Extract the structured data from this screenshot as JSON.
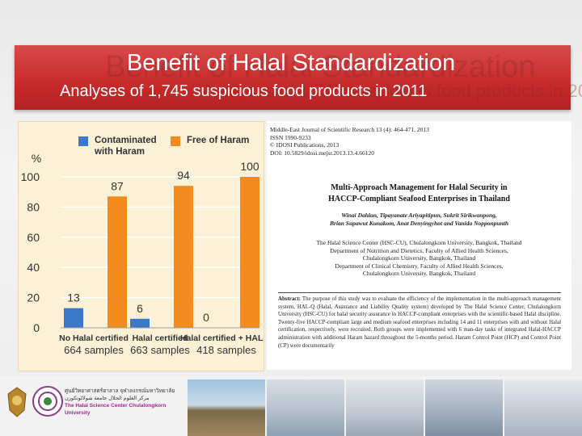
{
  "slide": {
    "title": "Benefit of Halal Standardization",
    "subtitle": "Analyses of 1,745 suspicious food products in 2011"
  },
  "chart_data": {
    "type": "bar",
    "categories": [
      "No Halal certified",
      "Halal certified",
      "Halal certified + HAL-Q"
    ],
    "sample_labels": [
      "664 samples",
      "663 samples",
      "418 samples"
    ],
    "series": [
      {
        "name": "Contaminated with Haram",
        "values": [
          13,
          6,
          0
        ],
        "color": "#3a78c9"
      },
      {
        "name": "Free of Haram",
        "values": [
          87,
          94,
          100
        ],
        "color": "#f28a1e"
      }
    ],
    "ylabel": "%",
    "yticks": [
      0,
      20,
      40,
      60,
      80,
      100
    ],
    "ylim": [
      0,
      100
    ],
    "legend": [
      {
        "lines": [
          "Contaminated",
          "with Haram"
        ],
        "color": "#3a78c9"
      },
      {
        "lines": [
          "Free of Haram"
        ],
        "color": "#f28a1e"
      }
    ]
  },
  "paper": {
    "header": [
      "Middle-East Journal of Scientific Research 13 (4): 464-471, 2013",
      "ISSN 1990-9233",
      "© IDOSI Publications, 2013",
      "DOI: 10.5829/idosi.mejsr.2013.13.4.66120"
    ],
    "title_lines": [
      "Multi-Approach Management for Halal Security in",
      "HACCP-Compliant Seafood Enterprises in Thailand"
    ],
    "author_lines": [
      "Winai Dahlan, Tipayanate Ariyapitipun, Sukrit Sirikwanpong,",
      "Brian Supawut Kunakom, Anat Denyingyhot and Vanida Nopponpunth"
    ],
    "affiliation_lines": [
      "The Halal Science Center (HSC-CU), Chulalongkorn University, Bangkok, Thailand",
      "Department of Nutrition and Dietetics, Faculty of Allied Health Sciences,",
      "Chulalongkorn University, Bangkok, Thailand",
      "Department of Clinical Chemistry, Faculty of Allied Health Sciences,",
      "Chulalongkorn University, Bangkok, Thailand"
    ],
    "abstract_label": "Abstract:",
    "abstract": "The purpose of this study was to evaluate the efficiency of the implementation in the multi-approach management system, HAL-Q (Halal, Assurance and Liability Quality system) developed by The Halal Science Center, Chulalongkorn University (HSC-CU) for halal security assurance in HACCP-compliant enterprises with the scientific-based Halal discipline. Twenty-five HACCP-compliant large and medium seafood enterprises including 14 and 11 enterprises with and without Halal certification, respectively, were recruited. Both groups were implemented with 6 man-day tasks of integrated Halal-HACCP administration with additional Haram hazard throughout the 5-months period. Haram Control Point (HCP) and Control Point (CP) were documentarily"
  },
  "footer": {
    "org_thai": "ศูนย์วิทยาศาสตร์ฮาลาล จุฬาลงกรณ์มหาวิทยาลัย",
    "org_arabic": "مركز العلوم الحلال جامعة شولالونكورن",
    "org_english": "The Halal Science Center Chulalongkorn University"
  }
}
